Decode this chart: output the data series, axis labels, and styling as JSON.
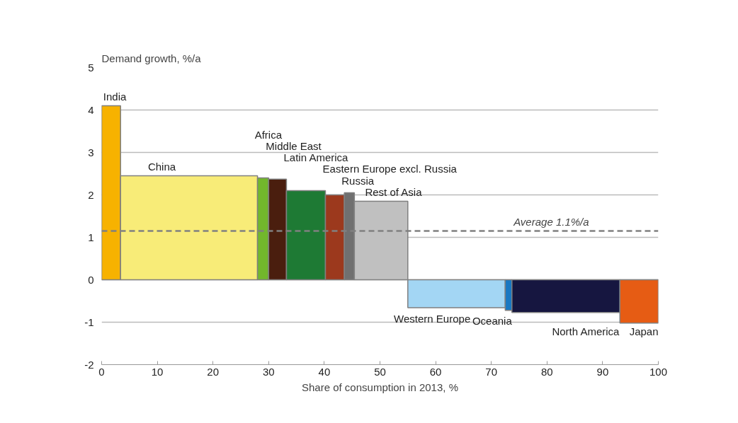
{
  "chart_data": {
    "type": "histogram",
    "xlabel": "Share of consumption in 2013, %",
    "ylabel": "Demand growth, %/a",
    "bins": [
      0,
      3.4,
      28.0,
      30.0,
      33.2,
      40.2,
      43.6,
      45.4,
      55.0,
      72.5,
      73.7,
      93.1,
      100
    ],
    "values": [
      4.1,
      2.45,
      2.4,
      2.37,
      2.1,
      2.0,
      2.05,
      1.85,
      -0.66,
      -0.72,
      -0.77,
      -1.02
    ],
    "colors": [
      "#f7b200",
      "#f8ec78",
      "#72b72c",
      "#4a1e0e",
      "#1e7a34",
      "#9c391d",
      "#707070",
      "#c0c0c0",
      "#a3d6f4",
      "#1a78c2",
      "#161640",
      "#e65c14"
    ],
    "xlim": [
      0,
      100
    ],
    "xticks": [
      0,
      10,
      20,
      30,
      40,
      50,
      60,
      70,
      80,
      90,
      100
    ],
    "ylim": [
      -2,
      5
    ],
    "yticks": [
      -2,
      -1,
      0,
      1,
      2,
      3,
      4,
      5
    ],
    "grid": "y",
    "ref_lines": [
      {
        "axis": "y",
        "value": 1.15,
        "label": "Average 1.1%/a",
        "color": "#808080",
        "line_style": "dashed"
      }
    ],
    "categories": [
      "India",
      "China",
      "Africa",
      "Middle East",
      "Latin America",
      "Eastern Europe excl. Russia",
      "Russia",
      "Rest of Asia",
      "Western Europe",
      "Oceania",
      "North America",
      "Japan"
    ]
  }
}
